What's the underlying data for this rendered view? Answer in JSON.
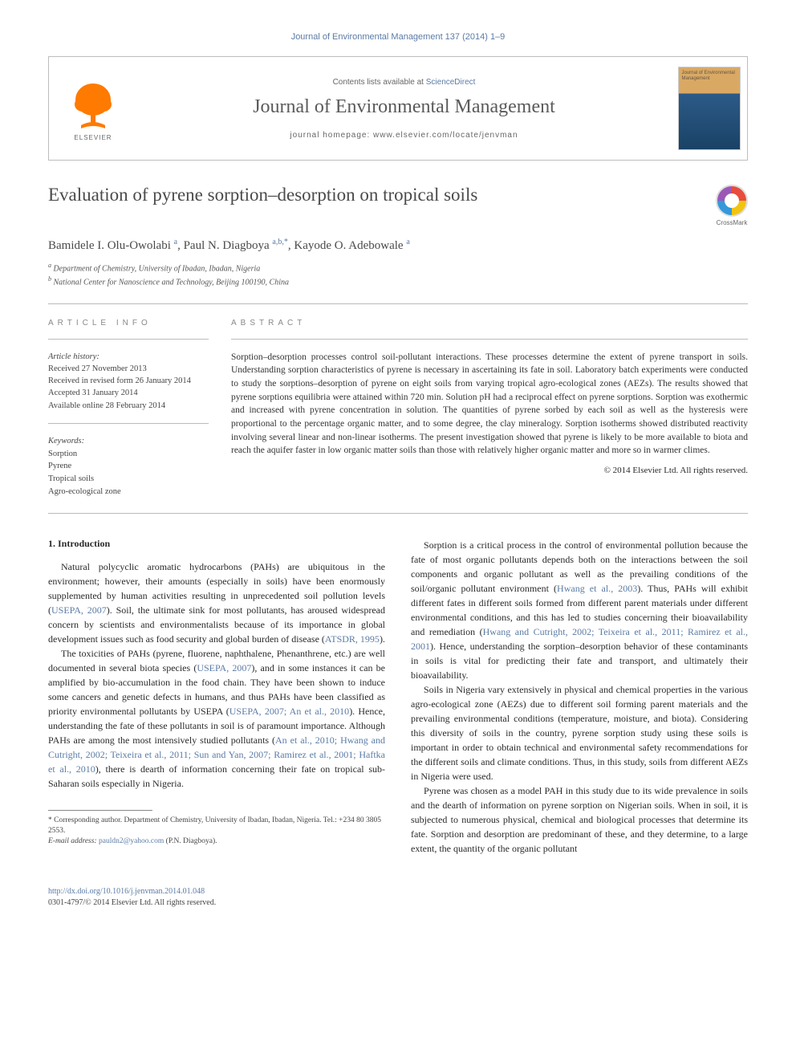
{
  "runningHead": "Journal of Environmental Management 137 (2014) 1–9",
  "banner": {
    "contentsPrefix": "Contents lists available at ",
    "contentsLink": "ScienceDirect",
    "journalName": "Journal of Environmental Management",
    "homepagePrefix": "journal homepage: ",
    "homepage": "www.elsevier.com/locate/jenvman",
    "publisherLabel": "ELSEVIER",
    "coverTitle": "Journal of Environmental Management"
  },
  "crossmarkLabel": "CrossMark",
  "article": {
    "title": "Evaluation of pyrene sorption–desorption on tropical soils",
    "authorsHtml": "Bamidele I. Olu-Owolabi <sup>a</sup>, Paul N. Diagboya <sup>a,b,*</sup>, Kayode O. Adebowale <sup>a</sup>",
    "affiliations": [
      {
        "marker": "a",
        "text": "Department of Chemistry, University of Ibadan, Ibadan, Nigeria"
      },
      {
        "marker": "b",
        "text": "National Center for Nanoscience and Technology, Beijing 100190, China"
      }
    ]
  },
  "labels": {
    "articleInfo": "ARTICLE INFO",
    "abstract": "ABSTRACT",
    "historyLabel": "Article history:",
    "keywordsLabel": "Keywords:"
  },
  "history": {
    "received": "Received 27 November 2013",
    "revised": "Received in revised form 26 January 2014",
    "accepted": "Accepted 31 January 2014",
    "online": "Available online 28 February 2014"
  },
  "keywords": [
    "Sorption",
    "Pyrene",
    "Tropical soils",
    "Agro-ecological zone"
  ],
  "abstract": "Sorption–desorption processes control soil-pollutant interactions. These processes determine the extent of pyrene transport in soils. Understanding sorption characteristics of pyrene is necessary in ascertaining its fate in soil. Laboratory batch experiments were conducted to study the sorptions–desorption of pyrene on eight soils from varying tropical agro-ecological zones (AEZs). The results showed that pyrene sorptions equilibria were attained within 720 min. Solution pH had a reciprocal effect on pyrene sorptions. Sorption was exothermic and increased with pyrene concentration in solution. The quantities of pyrene sorbed by each soil as well as the hysteresis were proportional to the percentage organic matter, and to some degree, the clay mineralogy. Sorption isotherms showed distributed reactivity involving several linear and non-linear isotherms. The present investigation showed that pyrene is likely to be more available to biota and reach the aquifer faster in low organic matter soils than those with relatively higher organic matter and more so in warmer climes.",
  "copyright": "© 2014 Elsevier Ltd. All rights reserved.",
  "intro": {
    "heading": "1. Introduction",
    "p1a": "Natural polycyclic aromatic hydrocarbons (PAHs) are ubiquitous in the environment; however, their amounts (especially in soils) have been enormously supplemented by human activities resulting in unprecedented soil pollution levels (",
    "p1c1": "USEPA, 2007",
    "p1b": "). Soil, the ultimate sink for most pollutants, has aroused widespread concern by scientists and environmentalists because of its importance in global development issues such as food security and global burden of disease (",
    "p1c2": "ATSDR, 1995",
    "p1d": ").",
    "p2a": "The toxicities of PAHs (pyrene, fluorene, naphthalene, Phenanthrene, etc.) are well documented in several biota species (",
    "p2c1": "USEPA, 2007",
    "p2b": "), and in some instances it can be amplified by bio-accumulation in the food chain. They have been shown to induce some cancers and genetic defects in humans, and thus PAHs have been classified as priority environmental pollutants by USEPA (",
    "p2c2": "USEPA, 2007; An et al., 2010",
    "p2c": "). Hence, understanding the fate of these pollutants in soil is of paramount importance. Although PAHs are among the most intensively studied pollutants (",
    "p2c3": "An et al., 2010; Hwang and Cutright, 2002; Teixeira et al., 2011; Sun and Yan, 2007; Ramirez et al., 2001; Haftka et al., 2010",
    "p2d": "), there is dearth of information concerning their fate on tropical sub-Saharan soils especially in Nigeria.",
    "p3a": "Sorption is a critical process in the control of environmental pollution because the fate of most organic pollutants depends both on the interactions between the soil components and organic pollutant as well as the prevailing conditions of the soil/organic pollutant environment (",
    "p3c1": "Hwang et al., 2003",
    "p3b": "). Thus, PAHs will exhibit different fates in different soils formed from different parent materials under different environmental conditions, and this has led to studies concerning their bioavailability and remediation (",
    "p3c2": "Hwang and Cutright, 2002; Teixeira et al., 2011; Ramirez et al., 2001",
    "p3c": "). Hence, understanding the sorption–desorption behavior of these contaminants in soils is vital for predicting their fate and transport, and ultimately their bioavailability.",
    "p4": "Soils in Nigeria vary extensively in physical and chemical properties in the various agro-ecological zone (AEZs) due to different soil forming parent materials and the prevailing environmental conditions (temperature, moisture, and biota). Considering this diversity of soils in the country, pyrene sorption study using these soils is important in order to obtain technical and environmental safety recommendations for the different soils and climate conditions. Thus, in this study, soils from different AEZs in Nigeria were used.",
    "p5": "Pyrene was chosen as a model PAH in this study due to its wide prevalence in soils and the dearth of information on pyrene sorption on Nigerian soils. When in soil, it is subjected to numerous physical, chemical and biological processes that determine its fate. Sorption and desorption are predominant of these, and they determine, to a large extent, the quantity of the organic pollutant"
  },
  "footnotes": {
    "corr": "* Corresponding author. Department of Chemistry, University of Ibadan, Ibadan, Nigeria. Tel.: +234 80 3805 2553.",
    "emailLabel": "E-mail address: ",
    "email": "pauldn2@yahoo.com",
    "emailSuffix": " (P.N. Diagboya)."
  },
  "footer": {
    "doi": "http://dx.doi.org/10.1016/j.jenvman.2014.01.048",
    "issn": "0301-4797/© 2014 Elsevier Ltd. All rights reserved."
  },
  "colors": {
    "link": "#5b7ba6",
    "orange": "#ff7a00",
    "text": "#2a2a2a",
    "border": "#bdbdbd"
  },
  "typography": {
    "title_fontsize": 23,
    "journal_fontsize": 24,
    "body_fontsize": 12,
    "abstract_fontsize": 11.5,
    "info_fontsize": 10.5,
    "footnote_fontsize": 9.5
  }
}
